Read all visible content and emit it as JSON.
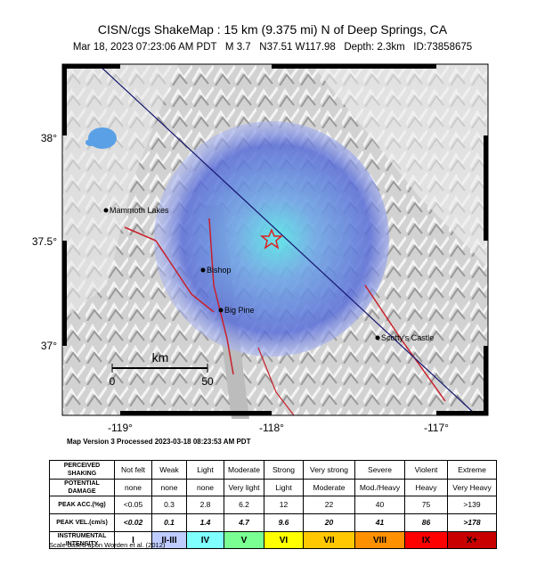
{
  "header": {
    "title": "CISN/cgs ShakeMap : 15 km (9.375 mi) N of Deep Springs, CA",
    "subtitle": "Mar 18, 2023 07:23:06 AM PDT   M 3.7   N37.51 W117.98   Depth: 2.3km   ID:73858675"
  },
  "map": {
    "lat_labels": [
      "38°",
      "37.5°",
      "37°"
    ],
    "lon_labels": [
      "-119°",
      "-118°",
      "-117°"
    ],
    "places": [
      "Mammoth Lakes",
      "Bishop",
      "Big Pine",
      "Scotty's Castle"
    ],
    "scale": {
      "unit": "km",
      "start": "0",
      "end": "50"
    }
  },
  "map_version": "Map Version 3 Processed 2023-03-18 08:23:53 AM PDT",
  "legend": {
    "rows": [
      [
        "PERCEIVED SHAKING",
        "Not felt",
        "Weak",
        "Light",
        "Moderate",
        "Strong",
        "Very strong",
        "Severe",
        "Violent",
        "Extreme"
      ],
      [
        "POTENTIAL DAMAGE",
        "none",
        "none",
        "none",
        "Very light",
        "Light",
        "Moderate",
        "Mod./Heavy",
        "Heavy",
        "Very Heavy"
      ],
      [
        "PEAK ACC.(%g)",
        "<0.05",
        "0.3",
        "2.8",
        "6.2",
        "12",
        "22",
        "40",
        "75",
        ">139"
      ],
      [
        "PEAK VEL.(cm/s)",
        "<0.02",
        "0.1",
        "1.4",
        "4.7",
        "9.6",
        "20",
        "41",
        "86",
        ">178"
      ],
      [
        "INSTRUMENTAL INTENSITY",
        "I",
        "II-III",
        "IV",
        "V",
        "VI",
        "VII",
        "VIII",
        "IX",
        "X+"
      ]
    ]
  },
  "footnote": "Scale based upon Worden et al. (2012)"
}
